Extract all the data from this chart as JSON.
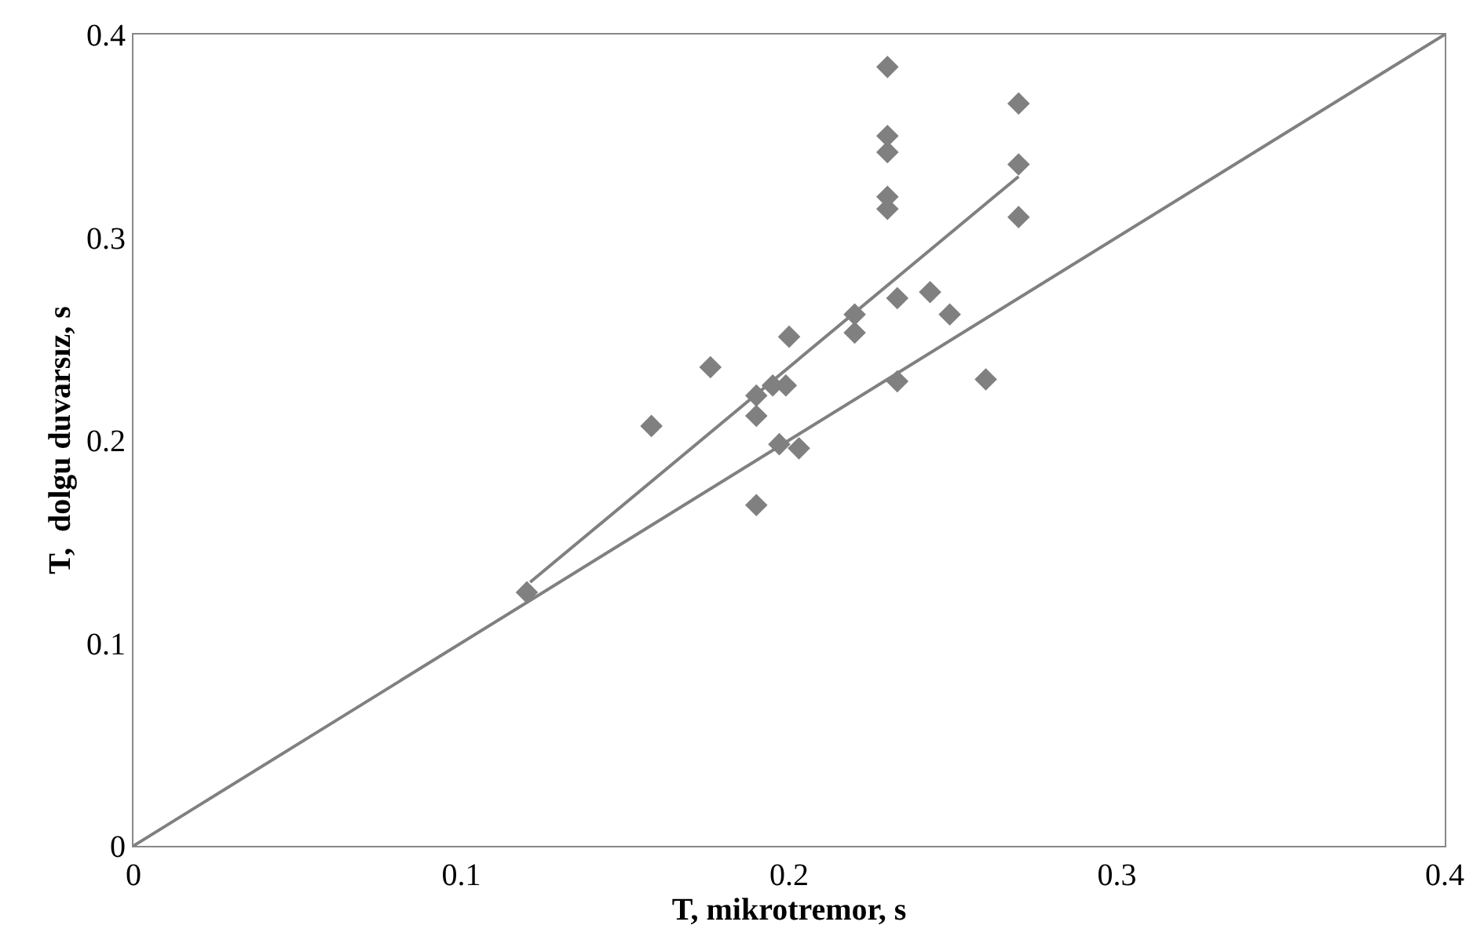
{
  "chart_data": {
    "type": "scatter",
    "xlabel": "T, mikrotremor, s",
    "ylabel": "T,  dolgu duvarsız, s",
    "xlim": [
      0,
      0.4
    ],
    "ylim": [
      0,
      0.4
    ],
    "xticks": [
      0,
      0.1,
      0.2,
      0.3,
      0.4
    ],
    "yticks": [
      0,
      0.1,
      0.2,
      0.3,
      0.4
    ],
    "grid": false,
    "marker": "diamond",
    "series": [
      {
        "color": "#808080",
        "x": [
          0.12,
          0.158,
          0.176,
          0.19,
          0.19,
          0.19,
          0.195,
          0.199,
          0.2,
          0.197,
          0.203,
          0.22,
          0.22,
          0.23,
          0.23,
          0.23,
          0.23,
          0.23,
          0.233,
          0.233,
          0.243,
          0.249,
          0.26,
          0.27,
          0.27,
          0.27
        ],
        "values": [
          0.125,
          0.207,
          0.236,
          0.222,
          0.212,
          0.168,
          0.227,
          0.227,
          0.251,
          0.198,
          0.196,
          0.262,
          0.253,
          0.384,
          0.35,
          0.342,
          0.32,
          0.314,
          0.27,
          0.229,
          0.273,
          0.262,
          0.23,
          0.366,
          0.336,
          0.31
        ]
      },
      {
        "type": "line",
        "color": "#808080",
        "marker": "none",
        "x": [
          0.121,
          0.27
        ],
        "values": [
          0.13,
          0.33
        ]
      },
      {
        "type": "line",
        "color": "#808080",
        "marker": "none",
        "x": [
          0,
          0.4
        ],
        "values": [
          0,
          0.4
        ]
      }
    ]
  }
}
